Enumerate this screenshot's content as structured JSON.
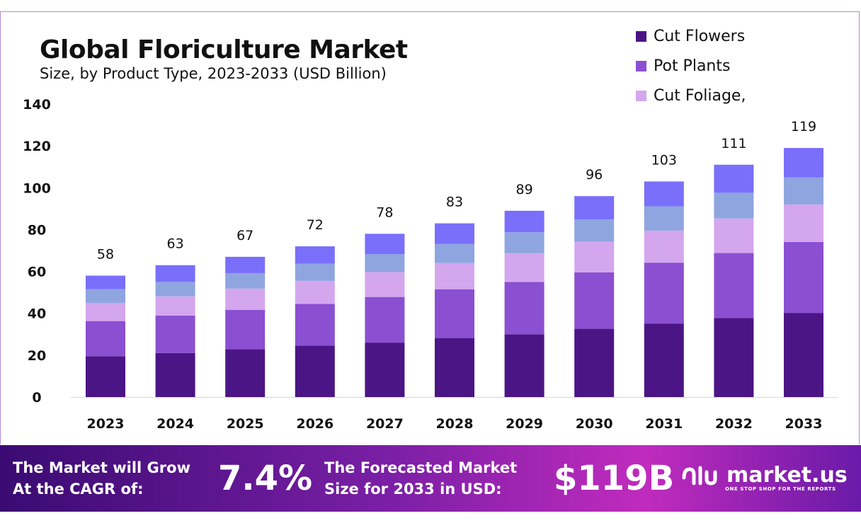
{
  "title": "Global Floriculture Market",
  "subtitle": "Size, by Product Type, 2023-2033 (USD Billion)",
  "legend": [
    {
      "label": "Cut Flowers",
      "color": "#4b1585"
    },
    {
      "label": "Pot Plants",
      "color": "#8b4fd2"
    },
    {
      "label": "Cut Foliage,",
      "color": "#d4a6ee"
    }
  ],
  "chart_data": {
    "type": "bar",
    "stacked": true,
    "categories": [
      "2023",
      "2024",
      "2025",
      "2026",
      "2027",
      "2028",
      "2029",
      "2030",
      "2031",
      "2032",
      "2033"
    ],
    "series": [
      {
        "name": "Cut Flowers",
        "color": "#4b1585",
        "values": [
          19.5,
          21,
          22.8,
          24.5,
          26,
          28.2,
          30,
          32.6,
          35,
          37.8,
          40.2
        ]
      },
      {
        "name": "Pot Plants",
        "color": "#8b4fd2",
        "values": [
          16.8,
          17.9,
          18.8,
          20,
          21.8,
          23.3,
          25,
          27,
          29.2,
          31,
          33.9
        ]
      },
      {
        "name": "Cut Foliage,",
        "color": "#d4a6ee",
        "values": [
          8.7,
          9.2,
          10.2,
          11,
          11.9,
          12.5,
          13.7,
          14.6,
          15.3,
          16.5,
          17.9
        ]
      },
      {
        "color": "#8fa5e0",
        "values": [
          6.5,
          6.9,
          7.4,
          8.2,
          8.6,
          9.2,
          10,
          10.6,
          11.6,
          12.3,
          13
        ]
      },
      {
        "color": "#7a6ffa",
        "values": [
          6.5,
          8,
          7.8,
          8.3,
          9.7,
          9.8,
          10.3,
          11.2,
          11.9,
          13.4,
          14
        ]
      }
    ],
    "totals": [
      "58",
      "63",
      "67",
      "72",
      "78",
      "83",
      "89",
      "96",
      "103",
      "111",
      "119"
    ],
    "yticks": [
      "0",
      "20",
      "40",
      "60",
      "80",
      "100",
      "120",
      "140"
    ],
    "ylim": [
      0,
      140
    ],
    "grid": false,
    "legend_position": "top-right"
  },
  "footer": {
    "cagr_line1": "The Market will Grow",
    "cagr_line2": "At the CAGR of:",
    "cagr_value": "7.4%",
    "forecast_line1": "The Forecasted Market",
    "forecast_line2": "Size for 2033 in USD:",
    "forecast_value": "$119B",
    "brand_name": "market.us",
    "brand_tagline": "ONE STOP SHOP FOR THE REPORTS"
  }
}
